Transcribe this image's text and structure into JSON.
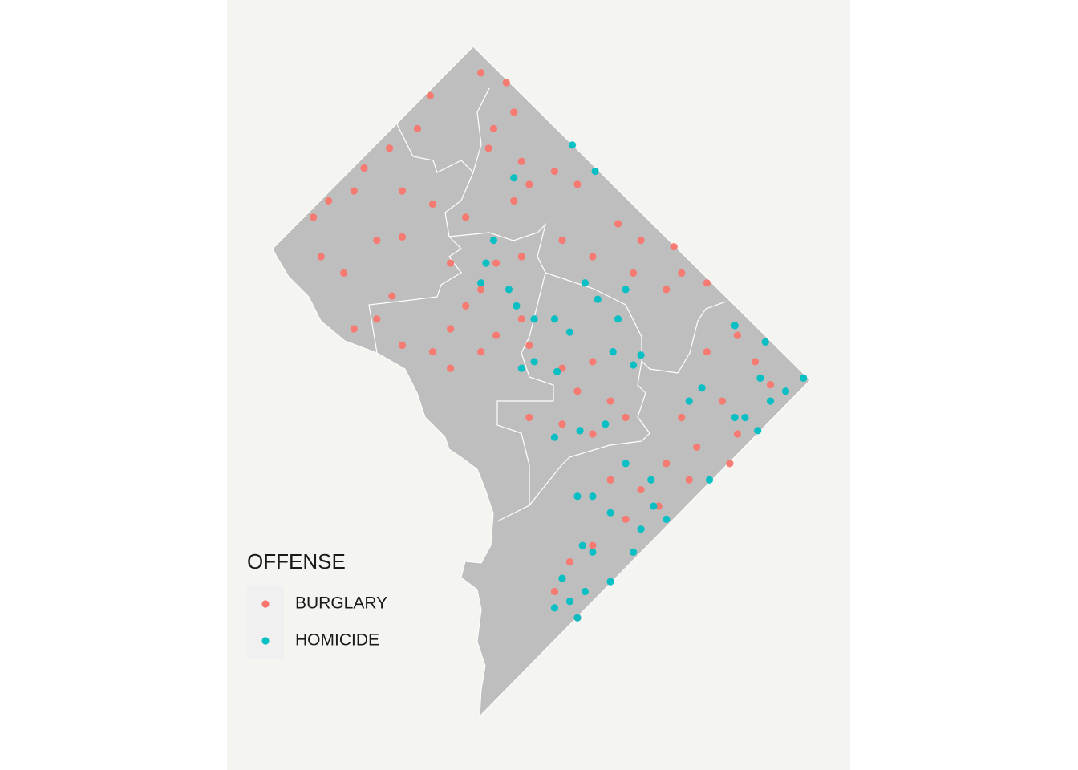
{
  "chart_data": {
    "type": "scatter",
    "legend_title": "OFFENSE",
    "legend": "bottom-left",
    "series": [
      {
        "name": "BURGLARY",
        "color": "#F8766D",
        "x": [
          -77.038,
          -77.028,
          -77.058,
          -77.025,
          -77.033,
          -77.063,
          -77.035,
          -77.022,
          -77.074,
          -77.084,
          -77.088,
          -77.069,
          -77.098,
          -77.104,
          -77.057,
          -77.044,
          -77.025,
          -77.019,
          -77.009,
          -77.0,
          -76.984,
          -76.975,
          -76.962,
          -76.959,
          -76.949,
          -76.965,
          -76.978,
          -76.994,
          -77.006,
          -77.022,
          -77.032,
          -77.038,
          -77.044,
          -77.05,
          -77.057,
          -77.069,
          -77.079,
          -77.088,
          -77.073,
          -77.092,
          -77.101,
          -77.079,
          -77.069,
          -77.05,
          -77.032,
          -77.019,
          -77.006,
          -76.994,
          -77.0,
          -76.987,
          -76.981,
          -76.994,
          -77.006,
          -77.019,
          -76.949,
          -76.937,
          -76.93,
          -76.924,
          -76.937,
          -76.943,
          -76.959,
          -76.953,
          -76.965,
          -76.975,
          -76.987,
          -76.981,
          -76.994,
          -77.003,
          -77.009,
          -77.0,
          -76.968,
          -76.956,
          -76.94,
          -77.022,
          -77.038,
          -77.05
        ],
        "values": [
          38.987,
          38.984,
          38.98,
          38.975,
          38.97,
          38.97,
          38.964,
          38.96,
          38.964,
          38.958,
          38.951,
          38.951,
          38.948,
          38.943,
          38.947,
          38.943,
          38.948,
          38.953,
          38.957,
          38.953,
          38.941,
          38.936,
          38.934,
          38.926,
          38.923,
          38.921,
          38.926,
          38.931,
          38.936,
          38.931,
          38.929,
          38.921,
          38.916,
          38.909,
          38.902,
          38.904,
          38.912,
          38.909,
          38.919,
          38.926,
          38.931,
          38.936,
          38.937,
          38.897,
          38.907,
          38.904,
          38.897,
          38.899,
          38.89,
          38.887,
          38.882,
          38.877,
          38.88,
          38.882,
          38.902,
          38.907,
          38.899,
          38.892,
          38.877,
          38.887,
          38.882,
          38.873,
          38.868,
          38.86,
          38.863,
          38.851,
          38.843,
          38.838,
          38.829,
          38.821,
          38.855,
          38.863,
          38.868,
          38.912,
          38.902,
          38.929
        ]
      },
      {
        "name": "HOMICIDE",
        "color": "#00BFC4",
        "x": [
          -77.002,
          -76.993,
          -77.025,
          -77.033,
          -77.036,
          -77.038,
          -77.027,
          -77.024,
          -77.017,
          -77.009,
          -77.003,
          -76.997,
          -76.992,
          -76.981,
          -76.984,
          -76.986,
          -76.978,
          -76.975,
          -77.017,
          -77.022,
          -77.008,
          -76.938,
          -76.926,
          -76.928,
          -76.924,
          -76.918,
          -76.911,
          -76.934,
          -76.938,
          -76.929,
          -76.956,
          -76.951,
          -76.948,
          -76.981,
          -76.971,
          -76.97,
          -76.975,
          -76.987,
          -77.0,
          -76.998,
          -76.994,
          -77.006,
          -77.003,
          -77.009,
          -77.0,
          -76.987,
          -76.978,
          -76.965,
          -76.997,
          -77.009,
          -76.999,
          -76.989,
          -76.994
        ],
        "values": [
          38.965,
          38.957,
          38.955,
          38.936,
          38.929,
          38.923,
          38.921,
          38.916,
          38.912,
          38.912,
          38.908,
          38.923,
          38.918,
          38.921,
          38.912,
          38.902,
          38.898,
          38.901,
          38.899,
          38.897,
          38.896,
          38.91,
          38.905,
          38.894,
          38.887,
          38.89,
          38.894,
          38.882,
          38.882,
          38.878,
          38.887,
          38.891,
          38.863,
          38.868,
          38.863,
          38.855,
          38.848,
          38.853,
          38.858,
          38.843,
          38.841,
          38.833,
          38.826,
          38.824,
          38.821,
          38.832,
          38.841,
          38.851,
          38.829,
          38.876,
          38.878,
          38.88,
          38.858
        ]
      }
    ]
  }
}
